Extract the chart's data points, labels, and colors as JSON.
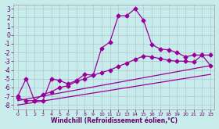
{
  "xlabel": "Windchill (Refroidissement éolien,°C)",
  "xlim": [
    -0.5,
    23.5
  ],
  "ylim": [
    -8.5,
    3.5
  ],
  "xticks": [
    0,
    1,
    2,
    3,
    4,
    5,
    6,
    7,
    8,
    9,
    10,
    11,
    12,
    13,
    14,
    15,
    16,
    17,
    18,
    19,
    20,
    21,
    22,
    23
  ],
  "yticks": [
    -8,
    -7,
    -6,
    -5,
    -4,
    -3,
    -2,
    -1,
    0,
    1,
    2,
    3
  ],
  "background_color": "#c8ecec",
  "grid_color": "#b0c8d0",
  "line_color": "#990099",
  "series1_x": [
    0,
    1,
    2,
    3,
    4,
    5,
    6,
    7,
    8,
    9,
    10,
    11,
    12,
    13,
    14,
    15,
    16,
    17,
    18,
    19,
    20,
    21,
    22,
    23
  ],
  "series1_y": [
    -7.0,
    -5.0,
    -7.5,
    -7.5,
    -5.0,
    -5.2,
    -5.6,
    -5.2,
    -4.5,
    -4.6,
    -1.5,
    -0.8,
    2.2,
    2.2,
    3.0,
    1.7,
    -1.1,
    -1.6,
    -1.7,
    -2.0,
    -2.5,
    -2.3,
    -2.3,
    -2.3
  ],
  "series2_x": [
    0,
    1,
    2,
    3,
    4,
    5,
    6,
    7,
    8,
    9,
    10,
    11,
    12,
    13,
    14,
    15,
    16,
    17,
    18,
    19,
    20,
    21,
    22,
    23
  ],
  "series2_y": [
    -7.2,
    -7.5,
    -7.5,
    -6.8,
    -6.5,
    -6.0,
    -5.8,
    -5.3,
    -5.0,
    -4.6,
    -4.3,
    -4.0,
    -3.6,
    -3.2,
    -2.8,
    -2.4,
    -2.5,
    -2.7,
    -2.9,
    -3.0,
    -3.0,
    -3.1,
    -2.3,
    -3.5
  ],
  "series3_x": [
    0,
    23
  ],
  "series3_y": [
    -7.5,
    -3.5
  ],
  "series4_x": [
    0,
    23
  ],
  "series4_y": [
    -8.0,
    -4.5
  ],
  "markersize": 2.5,
  "linewidth": 0.9
}
